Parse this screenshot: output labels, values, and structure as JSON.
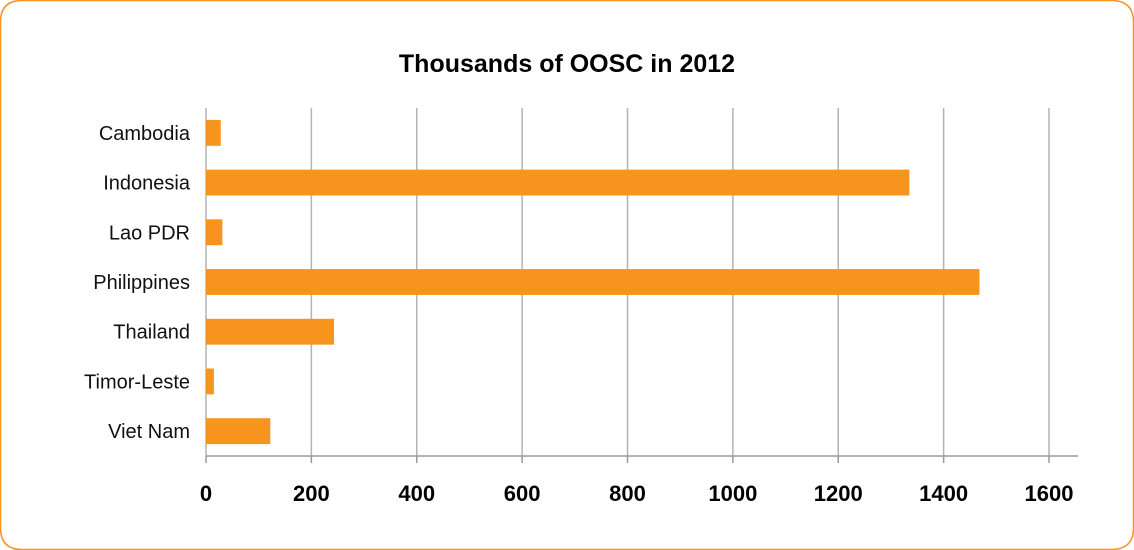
{
  "chart_data": {
    "type": "bar",
    "orientation": "horizontal",
    "title": "Thousands of OOSC in 2012",
    "xlabel": "",
    "ylabel": "",
    "categories": [
      "Cambodia",
      "Indonesia",
      "Lao PDR",
      "Philippines",
      "Thailand",
      "Timor-Leste",
      "Viet Nam"
    ],
    "values": [
      28,
      1335,
      31,
      1468,
      243,
      15,
      122
    ],
    "xlim": [
      0,
      1600
    ],
    "xticks": [
      "0",
      "200",
      "400",
      "600",
      "800",
      "1000",
      "1200",
      "1400",
      "1600"
    ],
    "grid": true,
    "legend": "none",
    "colors": {
      "bar": "#f7941d",
      "frame": "#f7941d",
      "grid": "#b3b3b3"
    }
  }
}
